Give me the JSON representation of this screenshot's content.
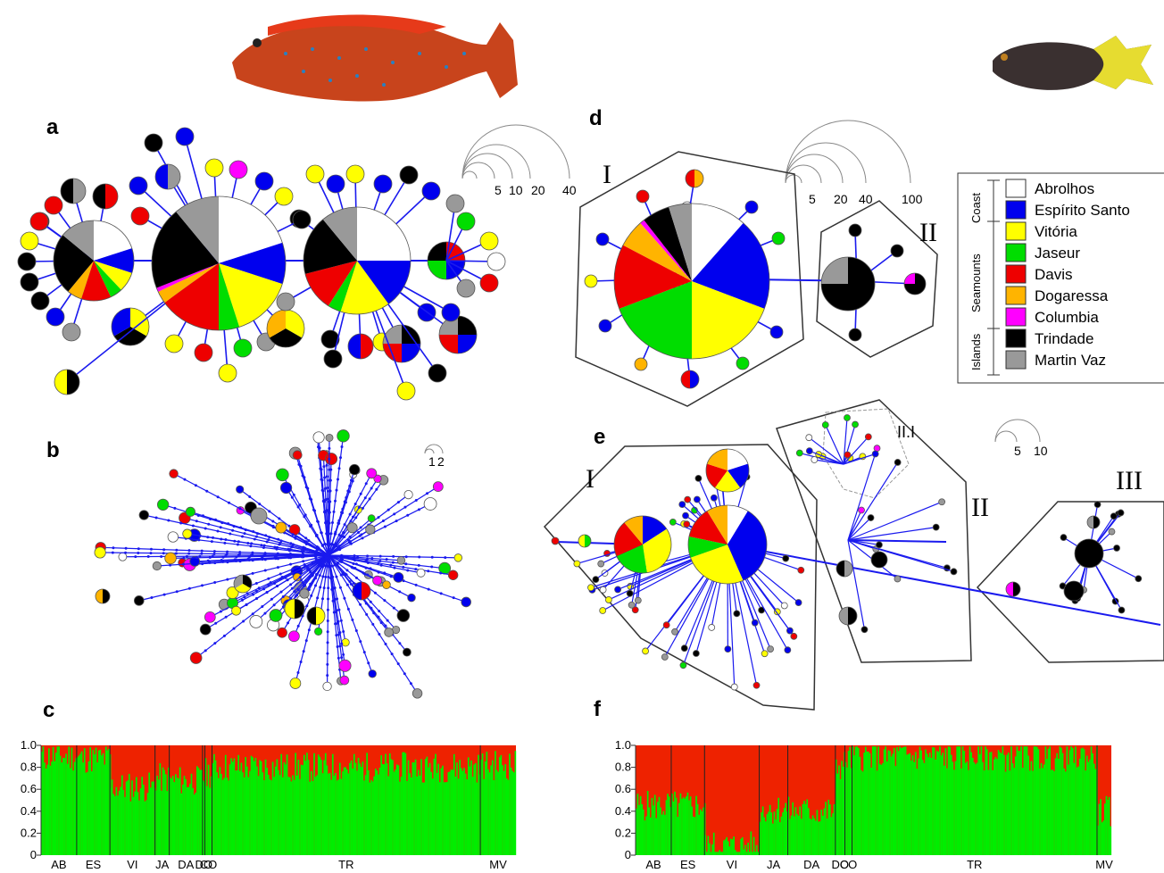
{
  "colors": {
    "Abrolhos": "#ffffff",
    "Espírito Santo": "#0000ee",
    "Vitória": "#ffff00",
    "Jaseur": "#00dd00",
    "Davis": "#ee0000",
    "Dogaressa": "#ffb400",
    "Columbia": "#ff00ff",
    "Trindade": "#000000",
    "Martin Vaz": "#999999",
    "edge": "#1a1aee",
    "bar_red": "#ee2200",
    "bar_green": "#00ee00"
  },
  "panels": {
    "a": {
      "label": "a",
      "scale": [
        "5",
        "10",
        "20",
        "40"
      ]
    },
    "b": {
      "label": "b",
      "scale": [
        "1",
        "2"
      ]
    },
    "c": {
      "label": "c"
    },
    "d": {
      "label": "d",
      "scale": [
        "5",
        "20",
        "40",
        "100"
      ],
      "groups": [
        "I",
        "II"
      ]
    },
    "e": {
      "label": "e",
      "scale": [
        "5",
        "10"
      ],
      "groups": [
        "I",
        "II",
        "III",
        "II.I"
      ]
    },
    "f": {
      "label": "f"
    }
  },
  "legend": {
    "groups": [
      "Coast",
      "Seamounts",
      "Islands"
    ],
    "items": [
      "Abrolhos",
      "Espírito Santo",
      "Vitória",
      "Jaseur",
      "Davis",
      "Dogaressa",
      "Columbia",
      "Trindade",
      "Martin Vaz"
    ]
  },
  "structure_axis": {
    "ticks": [
      "1.0",
      "0.8",
      "0.6",
      "0.4",
      "0.2",
      "0"
    ]
  },
  "structure_c": {
    "populations": [
      "AB",
      "ES",
      "VI",
      "JA",
      "DA",
      "DO",
      "CO",
      "TR",
      "MV"
    ],
    "mean_green": [
      0.9,
      0.88,
      0.62,
      0.7,
      0.68,
      0.72,
      0.75,
      0.8,
      0.82
    ]
  },
  "structure_f": {
    "populations": [
      "AB",
      "ES",
      "VI",
      "JA",
      "DA",
      "DO",
      "CO",
      "TR",
      "MV"
    ],
    "mean_green": [
      0.45,
      0.45,
      0.08,
      0.42,
      0.4,
      0.82,
      0.88,
      0.9,
      0.4
    ]
  }
}
